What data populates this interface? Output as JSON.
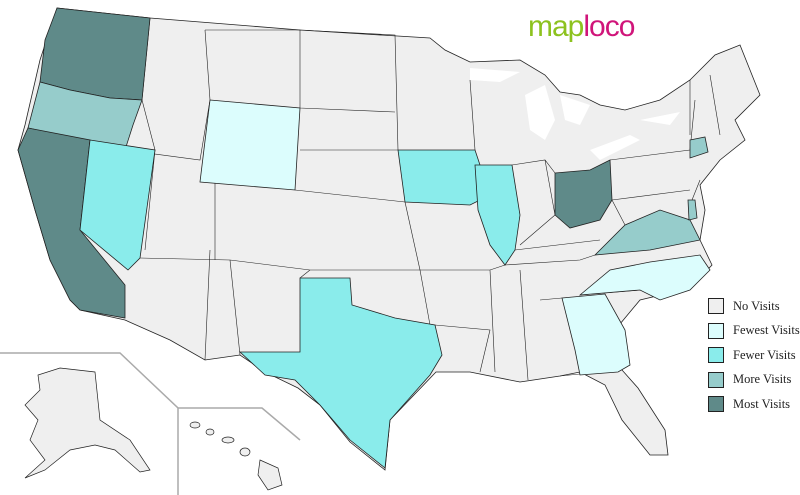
{
  "logo": {
    "part1": "map",
    "part2": "loco",
    "colors": {
      "map": "#8dc21f",
      "loco": "#d0157a"
    }
  },
  "legend": [
    {
      "label": "No Visits",
      "key": "none",
      "color": "#efefef"
    },
    {
      "label": "Fewest Visits",
      "key": "fewest",
      "color": "#dcfdfd"
    },
    {
      "label": "Fewer Visits",
      "key": "fewer",
      "color": "#8aeceb"
    },
    {
      "label": "More Visits",
      "key": "more",
      "color": "#96cccb"
    },
    {
      "label": "Most Visits",
      "key": "most",
      "color": "#5f8a89"
    }
  ],
  "states": {
    "WA": "most",
    "OR": "more",
    "CA": "most",
    "NV": "fewer",
    "WY": "fewest",
    "IA": "fewer",
    "IL": "fewer",
    "OH": "most",
    "TX": "fewer",
    "VA": "more",
    "NC": "fewest",
    "GA": "fewest",
    "CT": "more",
    "DE": "more"
  }
}
